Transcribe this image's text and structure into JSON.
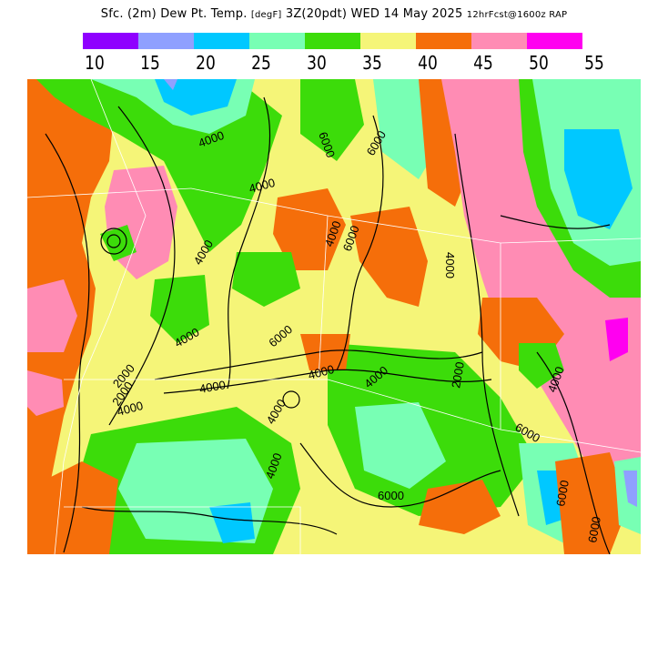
{
  "header": {
    "title_main": "Sfc. (2m) Dew Pt. Temp.",
    "units": "[degF]",
    "valid": "3Z(20pdt) WED 14 May 2025",
    "forecast": "12hrFcst@1600z RAP"
  },
  "legend": {
    "ticks": [
      "10",
      "15",
      "20",
      "25",
      "30",
      "35",
      "40",
      "45",
      "50",
      "55"
    ],
    "bins": [
      {
        "range": "10-15",
        "color": "#8f00ff"
      },
      {
        "range": "15-20",
        "color": "#8fa0ff"
      },
      {
        "range": "20-25",
        "color": "#00c8ff"
      },
      {
        "range": "25-30",
        "color": "#78ffb4"
      },
      {
        "range": "30-35",
        "color": "#3cdc0a"
      },
      {
        "range": "35-40",
        "color": "#f5f578"
      },
      {
        "range": "40-45",
        "color": "#f56e0a"
      },
      {
        "range": "45-50",
        "color": "#ff8cb4"
      },
      {
        "range": "50-55",
        "color": "#ff00f0"
      }
    ]
  },
  "map": {
    "contour_labels": [
      "4000",
      "4000",
      "4000",
      "4000",
      "6000",
      "6000",
      "6000",
      "4000",
      "6000",
      "2000",
      "4000",
      "2000",
      "4000",
      "4000",
      "4000",
      "2000",
      "4000",
      "6000",
      "4000",
      "6000",
      "6000",
      "4000",
      "4000",
      "6000"
    ],
    "colors": {
      "contour": "#000000",
      "boundary": "#ffffff",
      "fill_10_15": "#8f00ff",
      "fill_15_20": "#8fa0ff",
      "fill_20_25": "#00c8ff",
      "fill_25_30": "#78ffb4",
      "fill_30_35": "#3cdc0a",
      "fill_35_40": "#f5f578",
      "fill_40_45": "#f56e0a",
      "fill_45_50": "#ff8cb4",
      "fill_50_55": "#ff00f0"
    }
  }
}
